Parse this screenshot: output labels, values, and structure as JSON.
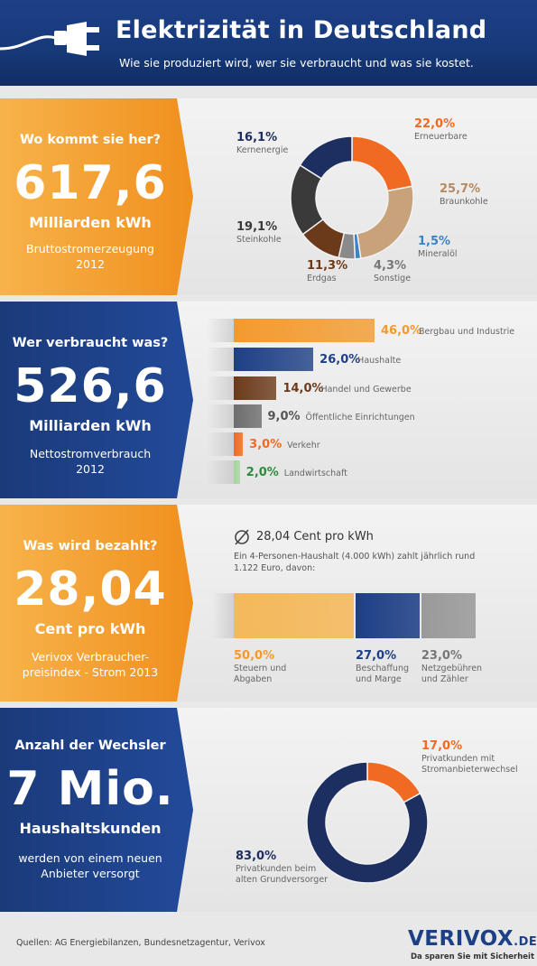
{
  "header": {
    "title": "Elektrizität in Deutschland",
    "subtitle": "Wie sie produziert wird, wer sie verbraucht und was sie kostet."
  },
  "colors": {
    "orange": "#f39a2e",
    "navy": "#1d3f86",
    "brown": "#6b3a1a",
    "gray": "#808080",
    "accent_orange": "#f06a22"
  },
  "section1": {
    "question": "Wo kommt sie her?",
    "big": "617,6",
    "unit": "Milliarden kWh",
    "desc1": "Bruttostromerzeugung",
    "desc2": "2012"
  },
  "section2": {
    "question": "Wer verbraucht was?",
    "big": "526,6",
    "unit": "Milliarden kWh",
    "desc1": "Nettostromverbrauch",
    "desc2": "2012"
  },
  "section3": {
    "question": "Was wird bezahlt?",
    "big": "28,04",
    "unit": "Cent pro kWh",
    "desc1": "Verivox Verbraucher-",
    "desc2": "preisindex - Strom 2013",
    "avg_label": "28,04 Cent pro kWh",
    "note1": "Ein 4-Personen-Haushalt (4.000 kWh) zahlt jährlich rund",
    "note2": "1.122 Euro, davon:"
  },
  "section4": {
    "question": "Anzahl der Wechsler",
    "big": "7 Mio.",
    "unit": "Haushaltskunden",
    "desc1": "werden von einem neuen",
    "desc2": "Anbieter versorgt"
  },
  "footer": {
    "sources": "Quellen: AG Energiebilanzen, Bundesnetzagentur, Verivox",
    "logo": "VERIVOX",
    "logo_suffix": ".DE",
    "slogan": "Da sparen Sie mit Sicherheit"
  },
  "chart_data": [
    {
      "type": "pie",
      "categories": [
        "Erneuerbare",
        "Braunkohle",
        "Mineralöl",
        "Sonstige",
        "Erdgas",
        "Steinkohle",
        "Kernenergie"
      ],
      "values": [
        22.0,
        25.7,
        1.5,
        4.3,
        11.3,
        19.1,
        16.1
      ],
      "value_labels": [
        "22,0%",
        "25,7%",
        "1,5%",
        "4,3%",
        "11,3%",
        "19,1%",
        "16,1%"
      ],
      "colors": [
        "#f06a22",
        "#c8a27a",
        "#3b82c8",
        "#8a8a8a",
        "#6b3a1a",
        "#3a3a3a",
        "#1d2f60"
      ]
    },
    {
      "type": "bar",
      "categories": [
        "Bergbau und Industrie",
        "Haushalte",
        "Handel und Gewerbe",
        "Öffentliche Einrichtungen",
        "Verkehr",
        "Landwirtschaft"
      ],
      "values": [
        46.0,
        26.0,
        14.0,
        9.0,
        3.0,
        2.0
      ],
      "value_labels": [
        "46,0%",
        "26,0%",
        "14,0%",
        "9,0%",
        "3,0%",
        "2,0%"
      ],
      "colors": [
        "#f39a2e",
        "#1d3f86",
        "#6b3a1a",
        "#6d6d6d",
        "#f06a22",
        "#a8d5a0"
      ],
      "label_colors": [
        "#f39a2e",
        "#1d3f86",
        "#6b3a1a",
        "#555555",
        "#f06a22",
        "#2f8a3e"
      ]
    },
    {
      "type": "bar",
      "categories": [
        "Steuern und Abgaben",
        "Beschaffung und Marge",
        "Netzgebühren und Zähler"
      ],
      "category_lines": [
        [
          "Steuern und",
          "Abgaben"
        ],
        [
          "Beschaffung",
          "und Marge"
        ],
        [
          "Netzgebühren",
          "und Zähler"
        ]
      ],
      "values": [
        50.0,
        27.0,
        23.0
      ],
      "value_labels": [
        "50,0%",
        "27,0%",
        "23,0%"
      ],
      "colors": [
        "#f5b85a",
        "#1d3f86",
        "#9a9a9a"
      ],
      "label_colors": [
        "#f39a2e",
        "#1d3f86",
        "#777777"
      ]
    },
    {
      "type": "pie",
      "categories": [
        "Privatkunden mit Stromanbieterwechsel",
        "Privatkunden beim alten Grundversorger"
      ],
      "category_lines": [
        [
          "Privatkunden mit",
          "Stromanbieterwechsel"
        ],
        [
          "Privatkunden beim",
          "alten Grundversorger"
        ]
      ],
      "values": [
        17.0,
        83.0
      ],
      "value_labels": [
        "17,0%",
        "83,0%"
      ],
      "colors": [
        "#f06a22",
        "#1d2f60"
      ]
    }
  ]
}
